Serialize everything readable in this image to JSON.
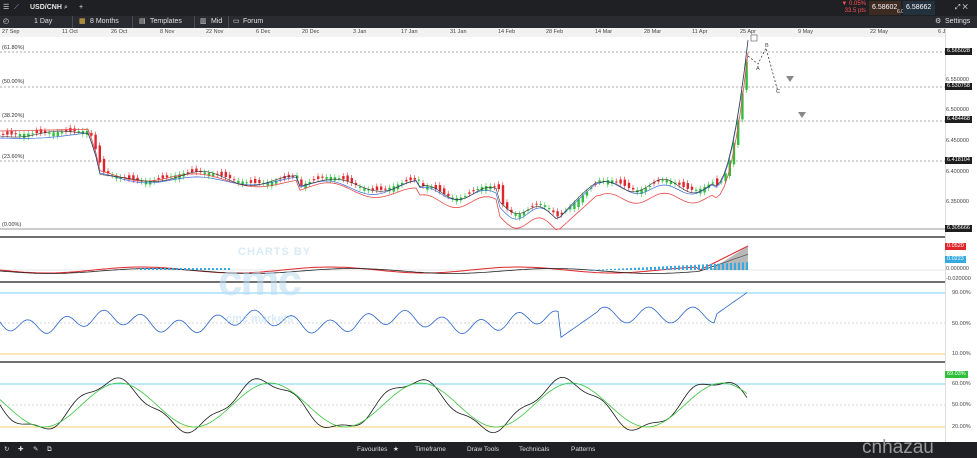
{
  "topbar": {
    "symbol": "USD/CNH",
    "add_tab": "+",
    "change_pct": "▼ 0.05%",
    "change_pts": "33.5 pts",
    "sell_price": "6.58602",
    "spread": "6.0",
    "buy_price": "6.58662",
    "window_icons": "⤢ ✕"
  },
  "toolbar": {
    "interval": "1 Day",
    "range": "8 Months",
    "templates": "Templates",
    "price_type": "Mid",
    "forum": "Forum",
    "settings": "Settings"
  },
  "time_axis": [
    "27 Sep",
    "11 Oct",
    "26 Oct",
    "8 Nov",
    "22 Nov",
    "6 Dec",
    "20 Dec",
    "3 Jan",
    "17 Jan",
    "31 Jan",
    "14 Feb",
    "28 Feb",
    "14 Mar",
    "28 Mar",
    "11 Apr",
    "25 Apr",
    "9 May",
    "22 May",
    "6 Jun"
  ],
  "price_axis": [
    "6.550000",
    "6.500000",
    "6.450000",
    "6.400000",
    "6.350000"
  ],
  "price_tags": [
    "6.565028",
    "6.530758",
    "6.484468",
    "6.418104",
    "6.305666"
  ],
  "fib_levels": [
    "(61.80%)",
    "(50.00%)",
    "(38.20%)",
    "(23.60%)",
    "(0.00%)"
  ],
  "wave_labels": [
    "B",
    "A",
    "C"
  ],
  "macd_panel": {
    "tag1": "0.0520",
    "tag2": "0.0223",
    "zero": "0.000000",
    "neg": "-0.020000"
  },
  "rsi_panel": {
    "top": "90.00%",
    "mid": "50.00%",
    "low": "10.00%"
  },
  "stoch_panel": {
    "tag": "69.03%",
    "l1": "60.00%",
    "l2": "50.00%",
    "l3": "20.00%"
  },
  "watermark": {
    "line1": "CHARTS BY",
    "line2": "cmc",
    "line3": "cmc markets"
  },
  "site_mark": "cnhazau",
  "bottombar": {
    "favourites": "Favourites",
    "timeframe": "Timeframe",
    "draw_tools": "Draw Tools",
    "technicals": "Technicals",
    "patterns": "Patterns"
  },
  "colors": {
    "bull": "#2fbf3b",
    "bear": "#e0262b",
    "ma_red": "#e84a4a",
    "ma_blue": "#3a6fd8",
    "rsi": "#2a63c9",
    "stoch_k": "#1b1b1b",
    "stoch_d": "#39c43f"
  }
}
